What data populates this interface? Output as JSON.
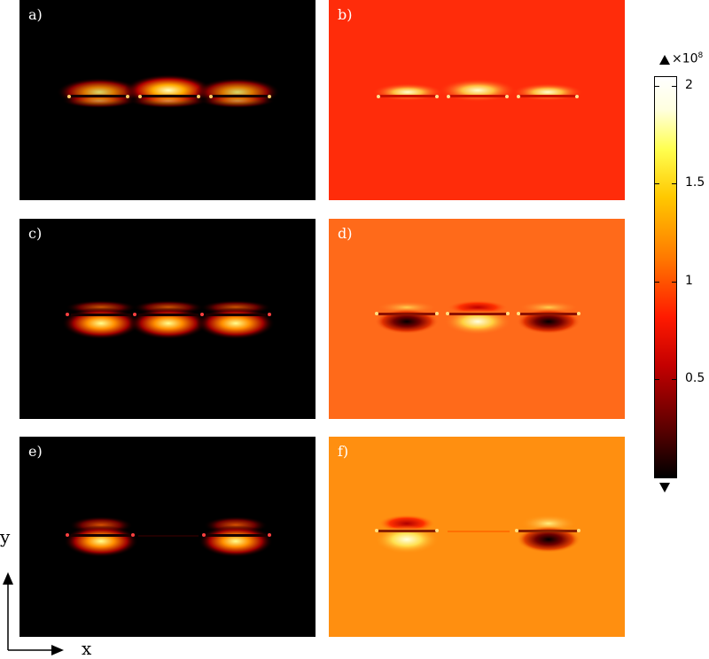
{
  "panels": [
    {
      "id": "a",
      "label": "a)",
      "colormap": "hot",
      "background": "#000000"
    },
    {
      "id": "b",
      "label": "b)",
      "colormap": "hot",
      "background": "#ff2c0a"
    },
    {
      "id": "c",
      "label": "c)",
      "colormap": "hot",
      "background": "#000000"
    },
    {
      "id": "d",
      "label": "d)",
      "colormap": "hot",
      "background": "#ff6a1a"
    },
    {
      "id": "e",
      "label": "e)",
      "colormap": "hot",
      "background": "#000000"
    },
    {
      "id": "f",
      "label": "f)",
      "colormap": "hot",
      "background": "#ff8f10"
    }
  ],
  "colorbar": {
    "multiplier": "×10",
    "exponent": "8",
    "ticks": [
      {
        "value": 2,
        "label": "2"
      },
      {
        "value": 1.5,
        "label": "1.5"
      },
      {
        "value": 1,
        "label": "1"
      },
      {
        "value": 0.5,
        "label": "0.5"
      }
    ],
    "min": 0,
    "max": 2.05
  },
  "axes": {
    "y_label": "y",
    "x_label": "x"
  }
}
